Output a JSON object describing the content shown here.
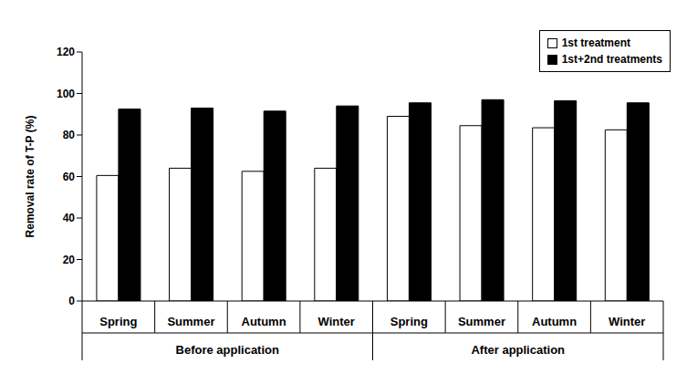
{
  "chart_data": {
    "type": "bar",
    "y_label": "Removal rate of T-P (%)",
    "categories": [
      "Spring",
      "Summer",
      "Autumn",
      "Winter",
      "Spring",
      "Summer",
      "Autumn",
      "Winter"
    ],
    "category_groups": [
      "Before application",
      "Before application",
      "Before application",
      "Before application",
      "After application",
      "After application",
      "After application",
      "After application"
    ],
    "series": [
      {
        "name": "1st treatment",
        "color": "#ffffff",
        "values": [
          60.5,
          64,
          62.5,
          64,
          89,
          84.5,
          83.5,
          82.5
        ]
      },
      {
        "name": "1st+2nd treatments",
        "color": "#000000",
        "values": [
          92.5,
          93,
          91.5,
          94,
          95.5,
          97,
          96.5,
          95.5
        ]
      }
    ],
    "ylim": [
      0,
      120
    ],
    "yticks": [
      0,
      20,
      40,
      60,
      80,
      100,
      120
    ],
    "grid": false,
    "legend": "upper right"
  }
}
